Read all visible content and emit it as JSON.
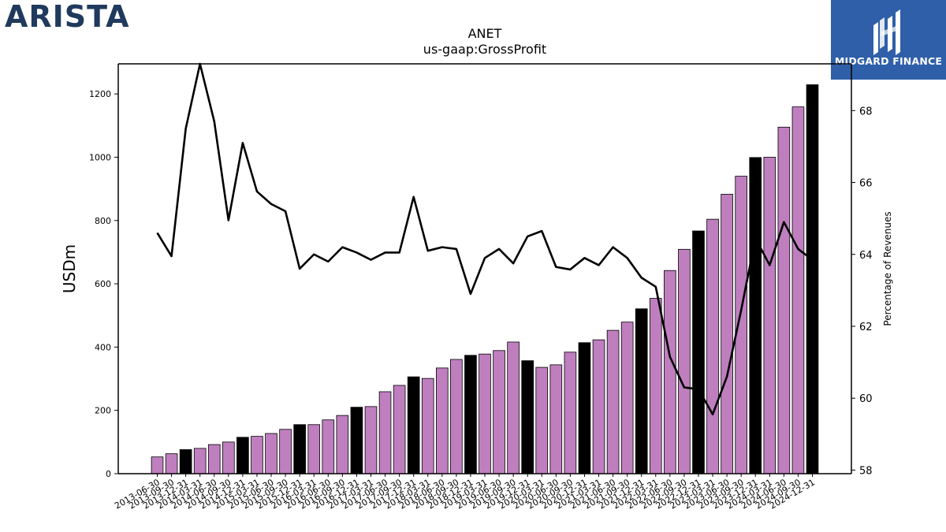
{
  "logos": {
    "left": "ARISTA",
    "right": "MIDGARD FINANCE"
  },
  "colors": {
    "bar_regular": "#bf7fbf",
    "bar_highlight": "#000000",
    "line": "#000000",
    "logo_left": "#1f3a5c",
    "logo_right_bg": "#2f5fa8"
  },
  "chart_data": {
    "type": "bar",
    "title": "ANET",
    "subtitle": "us-gaap:GrossProfit",
    "ylabel": "USDm",
    "y2label": "Percentage of Revenues",
    "ylim": [
      0,
      1295
    ],
    "y2lim": [
      57.9,
      69.3
    ],
    "yticks": [
      0,
      200,
      400,
      600,
      800,
      1000,
      1200
    ],
    "y2ticks": [
      58,
      60,
      62,
      64,
      66,
      68
    ],
    "categories": [
      "2013-06-30",
      "2013-09-30",
      "2013-12-31",
      "2014-03-31",
      "2014-06-30",
      "2014-09-30",
      "2014-12-31",
      "2015-03-31",
      "2015-06-30",
      "2015-09-30",
      "2015-12-31",
      "2016-03-31",
      "2016-06-30",
      "2016-09-30",
      "2016-12-31",
      "2017-03-31",
      "2017-06-30",
      "2017-09-30",
      "2017-12-31",
      "2018-03-31",
      "2018-06-30",
      "2018-09-30",
      "2018-12-31",
      "2019-03-31",
      "2019-06-30",
      "2019-09-30",
      "2019-12-31",
      "2020-03-31",
      "2020-06-30",
      "2020-09-30",
      "2020-12-31",
      "2021-03-31",
      "2021-06-30",
      "2021-09-30",
      "2021-12-31",
      "2022-03-31",
      "2022-06-30",
      "2022-09-30",
      "2022-12-31",
      "2023-03-31",
      "2023-06-30",
      "2023-09-30",
      "2023-12-31",
      "2024-03-31",
      "2024-06-30",
      "2024-09-30",
      "2024-12-31"
    ],
    "series": [
      {
        "kind": "bar",
        "values": [
          53,
          63,
          76,
          80,
          92,
          100,
          115,
          118,
          127,
          140,
          155,
          155,
          170,
          184,
          210,
          212,
          259,
          279,
          306,
          301,
          334,
          361,
          374,
          378,
          389,
          416,
          357,
          336,
          344,
          384,
          414,
          423,
          453,
          479,
          521,
          554,
          642,
          709,
          767,
          804,
          883,
          940,
          999,
          1000,
          1095,
          1159,
          1229
        ],
        "highlight_quarter_end": "12-31"
      },
      {
        "kind": "line",
        "axis": "right",
        "values": [
          64.6,
          63.95,
          67.5,
          69.3,
          67.7,
          64.95,
          67.1,
          65.75,
          65.4,
          65.2,
          63.6,
          64.0,
          63.8,
          64.2,
          64.05,
          63.85,
          64.05,
          64.05,
          65.6,
          64.1,
          64.2,
          64.15,
          62.9,
          63.9,
          64.15,
          63.75,
          64.5,
          64.65,
          63.65,
          63.58,
          63.9,
          63.7,
          64.2,
          63.9,
          63.35,
          63.1,
          61.15,
          60.3,
          60.25,
          59.55,
          60.6,
          62.45,
          64.45,
          63.7,
          64.9,
          64.15,
          63.85
        ]
      }
    ],
    "grid": false,
    "legend": "none"
  }
}
